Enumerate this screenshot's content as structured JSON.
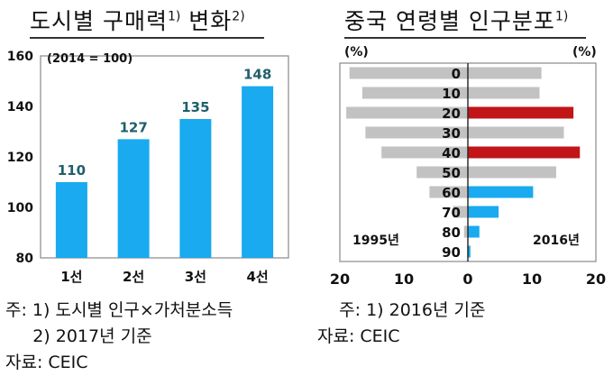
{
  "left": {
    "title": "도시별 구매력",
    "title_sup1": "1)",
    "title2": "변화",
    "title_sup2": "2)",
    "notes": [
      "주: 1) 도시별 인구×가처분소득",
      "     2) 2017년 기준",
      "자료: CEIC"
    ]
  },
  "right": {
    "title": "중국 연령별 인구분포",
    "title_sup": "1)",
    "notes": [
      "    주: 1) 2016년 기준",
      "자료: CEIC"
    ]
  },
  "chart_data": [
    {
      "type": "bar",
      "annotation": "(2014 = 100)",
      "categories": [
        "1선",
        "2선",
        "3선",
        "4선"
      ],
      "values": [
        110,
        127,
        135,
        148
      ],
      "ylim": [
        80,
        160
      ],
      "yticks": [
        80,
        100,
        120,
        140,
        160
      ],
      "grid": false,
      "colors": {
        "bar": "#19aaf0",
        "label": "#1f5f6b"
      }
    },
    {
      "type": "bar",
      "orientation": "horizontal-diverging",
      "categories": [
        "0",
        "10",
        "20",
        "30",
        "40",
        "50",
        "60",
        "70",
        "80",
        "90"
      ],
      "series": [
        {
          "name": "1995년",
          "side": "left",
          "values": [
            18.5,
            16.5,
            19.0,
            16.0,
            13.5,
            8.0,
            6.0,
            2.3,
            0.6,
            0.1
          ]
        },
        {
          "name": "2016년",
          "side": "right",
          "values": [
            11.5,
            11.2,
            16.5,
            15.0,
            17.5,
            13.8,
            10.2,
            4.8,
            1.8,
            0.4
          ]
        }
      ],
      "unit_left": "(%)",
      "unit_right": "(%)",
      "xticks": [
        "20",
        "10",
        "0",
        "10",
        "20"
      ],
      "xlim": [
        -20,
        20
      ],
      "highlight": {
        "20": "red",
        "40": "red",
        "60": "blue",
        "70": "blue",
        "80": "blue",
        "90": "blue"
      },
      "colors": {
        "gray": "#c2c2c2",
        "red": "#c11518",
        "blue": "#19aaf0"
      }
    }
  ]
}
